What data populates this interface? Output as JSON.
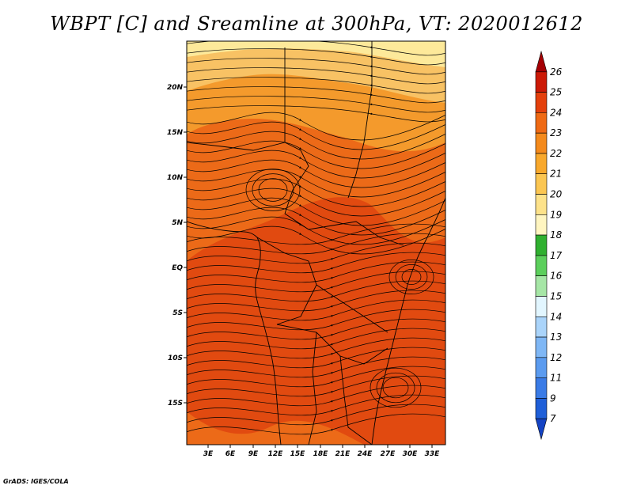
{
  "title": "WBPT [C] and Sreamline at 300hPa, VT: 2020012612",
  "map": {
    "lat_labels": [
      "20N",
      "15N",
      "10N",
      "5N",
      "EQ",
      "5S",
      "10S",
      "15S"
    ],
    "lon_labels": [
      "3E",
      "6E",
      "9E",
      "12E",
      "15E",
      "18E",
      "21E",
      "24E",
      "27E",
      "30E",
      "33E"
    ],
    "field_colors": {
      "band_19_20": "#fde99a",
      "band_20_21": "#f8c264",
      "band_21_22": "#f49a2c",
      "band_22_23": "#ec6a18",
      "band_23_24": "#e14a10"
    }
  },
  "colorbar": {
    "levels": [
      "26",
      "25",
      "24",
      "23",
      "22",
      "21",
      "20",
      "19",
      "18",
      "17",
      "16",
      "15",
      "14",
      "13",
      "12",
      "11",
      "9",
      "7"
    ],
    "colors": [
      "#a50004",
      "#cc1a06",
      "#e4400c",
      "#ef6a14",
      "#f48a1c",
      "#f8a82c",
      "#fbc652",
      "#fde28a",
      "#fff5c0",
      "#30b030",
      "#5ccf5c",
      "#a6e6a6",
      "#e2f6ff",
      "#aad4fa",
      "#7fb7f5",
      "#5b9bef",
      "#3a7be6",
      "#1f5fd8",
      "#1443c4"
    ]
  },
  "credit": "GrADS: IGES/COLA"
}
